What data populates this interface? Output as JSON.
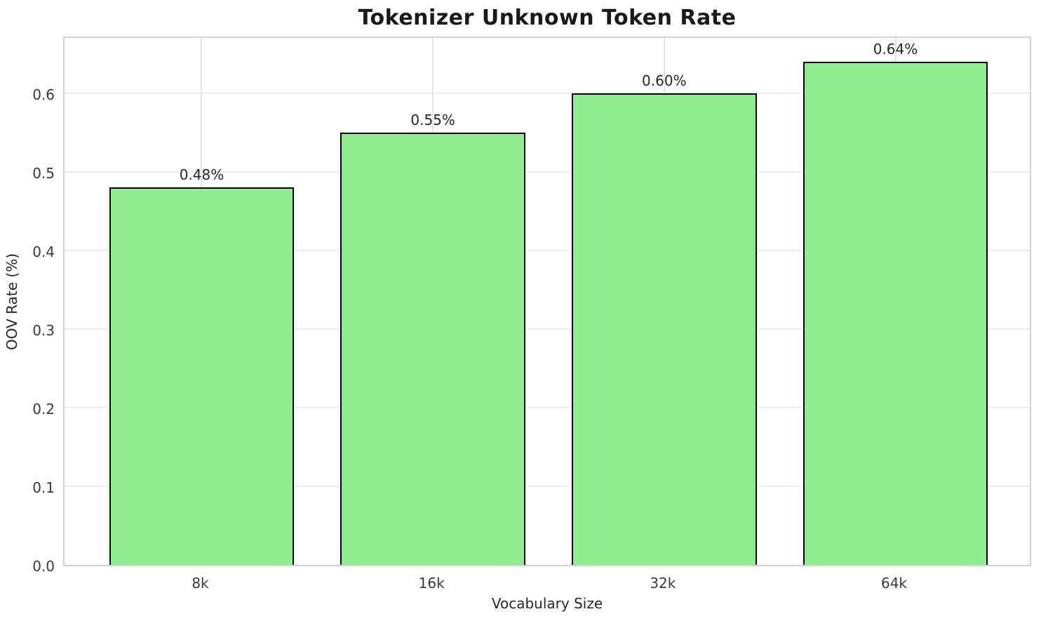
{
  "chart_data": {
    "type": "bar",
    "title": "Tokenizer Unknown Token Rate",
    "xlabel": "Vocabulary Size",
    "ylabel": "OOV Rate (%)",
    "categories": [
      "8k",
      "16k",
      "32k",
      "64k"
    ],
    "values": [
      0.48,
      0.55,
      0.6,
      0.64
    ],
    "bar_labels": [
      "0.48%",
      "0.55%",
      "0.60%",
      "0.64%"
    ],
    "yticks": [
      0.0,
      0.1,
      0.2,
      0.3,
      0.4,
      0.5,
      0.6
    ],
    "ytick_labels": [
      "0.0",
      "0.1",
      "0.2",
      "0.3",
      "0.4",
      "0.5",
      "0.6"
    ],
    "ylim": [
      0,
      0.674
    ],
    "xlim": [
      -0.593,
      3.593
    ],
    "bar_width_units": 0.8,
    "grid": true,
    "legend": null,
    "bar_color": "#90EE90",
    "bar_edge_color": "#000000",
    "grid_color": "#ededed",
    "spine_color": "#d3d3d3"
  }
}
